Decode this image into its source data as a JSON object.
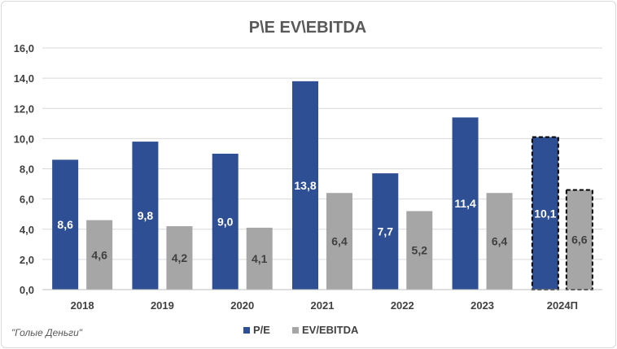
{
  "chart_data": {
    "type": "bar",
    "title": "P\\E EV\\EBITDA",
    "categories": [
      "2018",
      "2019",
      "2020",
      "2021",
      "2022",
      "2023",
      "2024П"
    ],
    "series": [
      {
        "name": "P/E",
        "values": [
          8.6,
          9.8,
          9.0,
          13.8,
          7.7,
          11.4,
          10.1
        ],
        "labels": [
          "8,6",
          "9,8",
          "9,0",
          "13,8",
          "7,7",
          "11,4",
          "10,1"
        ],
        "color": "#2e4f93"
      },
      {
        "name": "EV/EBITDA",
        "values": [
          4.6,
          4.2,
          4.1,
          6.4,
          5.2,
          6.4,
          6.6
        ],
        "labels": [
          "4,6",
          "4,2",
          "4,1",
          "6,4",
          "5,2",
          "6,4",
          "6,6"
        ],
        "color": "#a6a6a6"
      }
    ],
    "forecast_categories": [
      "2024П"
    ],
    "ylim": [
      0,
      16
    ],
    "yticks": [
      0,
      2,
      4,
      6,
      8,
      10,
      12,
      14,
      16
    ],
    "ytick_labels": [
      "0,0",
      "2,0",
      "4,0",
      "6,0",
      "8,0",
      "10,0",
      "12,0",
      "14,0",
      "16,0"
    ],
    "xlabel": "",
    "ylabel": "",
    "grid": true,
    "legend_position": "bottom"
  },
  "source_note": "\"Голые Деньги\""
}
